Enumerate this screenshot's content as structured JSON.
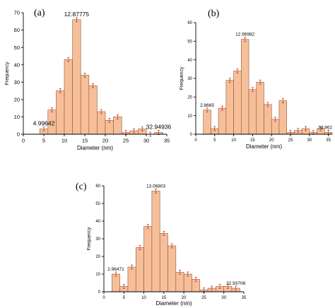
{
  "chart_data": [
    {
      "type": "bar",
      "panel_label": "(a)",
      "xlabel": "Diameter (nm)",
      "ylabel": "Frequency",
      "xlim": [
        0,
        35
      ],
      "ylim": [
        0,
        70
      ],
      "x_ticks": [
        0,
        5,
        10,
        15,
        20,
        25,
        30,
        35
      ],
      "y_ticks": [
        0,
        10,
        20,
        30,
        40,
        50,
        60,
        70
      ],
      "bin_width": 2,
      "x": [
        5,
        7,
        9,
        11,
        13,
        15,
        17,
        19,
        21,
        23,
        25,
        27,
        29,
        31,
        33
      ],
      "values": [
        3,
        14,
        25,
        43,
        66,
        34,
        28,
        13,
        8,
        10,
        1,
        2,
        3,
        0,
        1
      ],
      "annotations": [
        {
          "x": 5,
          "text": "4.99642"
        },
        {
          "x": 13,
          "text": "12.87775"
        },
        {
          "x": 33,
          "text": "32.94936"
        }
      ],
      "bar_color": "#f6bf99"
    },
    {
      "type": "bar",
      "panel_label": "(b)",
      "xlabel": "Diameter (nm)",
      "ylabel": "Frequency",
      "xlim": [
        0,
        36
      ],
      "ylim": [
        0,
        60
      ],
      "x_ticks": [
        0,
        5,
        10,
        15,
        20,
        25,
        30,
        35
      ],
      "y_ticks": [
        0,
        10,
        20,
        30,
        40,
        50,
        60
      ],
      "bin_width": 2,
      "x": [
        3,
        5,
        7,
        9,
        11,
        13,
        15,
        17,
        19,
        21,
        23,
        25,
        27,
        29,
        31,
        33,
        35
      ],
      "values": [
        13,
        3,
        14,
        29,
        34,
        51,
        24,
        28,
        16,
        8,
        18,
        1,
        2,
        3,
        1,
        3,
        1
      ],
      "annotations": [
        {
          "x": 3,
          "text": "2.8665"
        },
        {
          "x": 13,
          "text": "12.96982"
        },
        {
          "x": 35,
          "text": "34.962"
        }
      ],
      "bar_color": "#f6bf99"
    },
    {
      "type": "bar",
      "panel_label": "(c)",
      "xlabel": "Diameter (nm)",
      "ylabel": "Frequency",
      "xlim": [
        0,
        35
      ],
      "ylim": [
        0,
        60
      ],
      "x_ticks": [
        0,
        5,
        10,
        15,
        20,
        25,
        30,
        35
      ],
      "y_ticks": [
        0,
        10,
        20,
        30,
        40,
        50,
        60
      ],
      "bin_width": 2,
      "x": [
        3,
        5,
        7,
        9,
        11,
        13,
        15,
        17,
        19,
        21,
        23,
        25,
        27,
        29,
        31,
        33
      ],
      "values": [
        10,
        3,
        14,
        25,
        37,
        57,
        33,
        26,
        11,
        10,
        7,
        1,
        2,
        3,
        3,
        2
      ],
      "annotations": [
        {
          "x": 3,
          "text": "2.96471"
        },
        {
          "x": 13,
          "text": "13.06803"
        },
        {
          "x": 33,
          "text": "32.93708"
        }
      ],
      "bar_color": "#f6bf99"
    }
  ]
}
